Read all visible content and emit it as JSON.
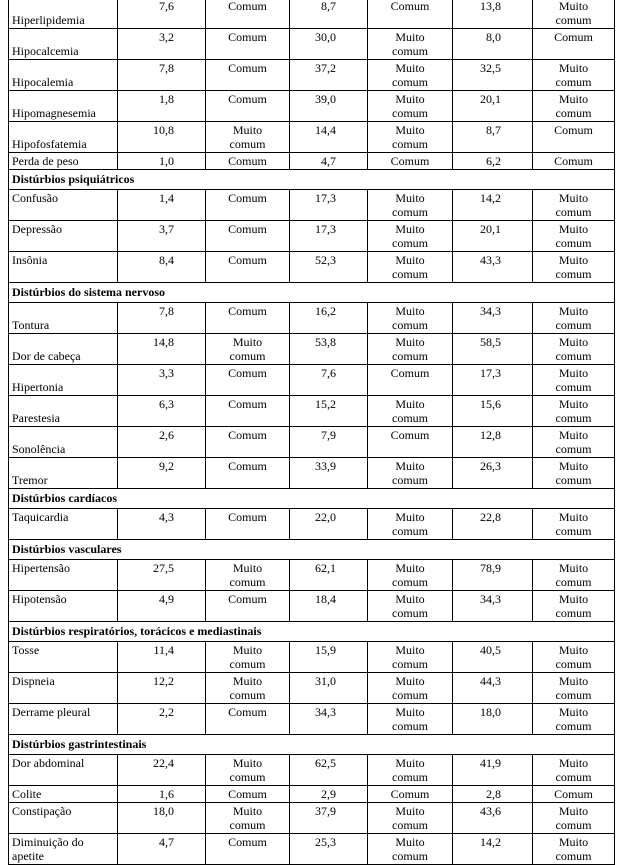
{
  "table": {
    "rows": [
      {
        "label": "Hiperlipidemia",
        "cells": [
          "7,6",
          "Comum",
          "8,7",
          "Comum",
          "13,8",
          "Muito comum"
        ]
      },
      {
        "label": "Hipocalcemia",
        "cells": [
          "3,2",
          "Comum",
          "30,0",
          "Muito comum",
          "8,0",
          "Comum"
        ]
      },
      {
        "label": "Hipocalemia",
        "cells": [
          "7,8",
          "Comum",
          "37,2",
          "Muito comum",
          "32,5",
          "Muito comum"
        ]
      },
      {
        "label": "Hipomagnesemia",
        "cells": [
          "1,8",
          "Comum",
          "39,0",
          "Muito comum",
          "20,1",
          "Muito comum"
        ]
      },
      {
        "label": "Hipofosfatemia",
        "cells": [
          "10,8",
          "Muito comum",
          "14,4",
          "Muito comum",
          "8,7",
          "Comum"
        ]
      },
      {
        "label": "Perda de peso",
        "cells": [
          "1,0",
          "Comum",
          "4,7",
          "Comum",
          "6,2",
          "Comum"
        ]
      },
      {
        "heading": "Distúrbios psiquiátricos"
      },
      {
        "label": "Confusão",
        "cells": [
          "1,4",
          "Comum",
          "17,3",
          "Muito comum",
          "14,2",
          "Muito comum"
        ]
      },
      {
        "label": "Depressão",
        "cells": [
          "3,7",
          "Comum",
          "17,3",
          "Muito comum",
          "20,1",
          "Muito comum"
        ]
      },
      {
        "label": "Insônia",
        "cells": [
          "8,4",
          "Comum",
          "52,3",
          "Muito comum",
          "43,3",
          "Muito comum"
        ]
      },
      {
        "heading": "Distúrbios do sistema nervoso"
      },
      {
        "label": "Tontura",
        "cells": [
          "7,8",
          "Comum",
          "16,2",
          "Muito comum",
          "34,3",
          "Muito comum"
        ]
      },
      {
        "label": "Dor de cabeça",
        "cells": [
          "14,8",
          "Muito comum",
          "53,8",
          "Muito comum",
          "58,5",
          "Muito comum"
        ]
      },
      {
        "label": "Hipertonia",
        "cells": [
          "3,3",
          "Comum",
          "7,6",
          "Comum",
          "17,3",
          "Muito comum"
        ]
      },
      {
        "label": "Parestesia",
        "cells": [
          "6,3",
          "Comum",
          "15,2",
          "Muito comum",
          "15,6",
          "Muito comum"
        ]
      },
      {
        "label": "Sonolência",
        "cells": [
          "2,6",
          "Comum",
          "7,9",
          "Comum",
          "12,8",
          "Muito comum"
        ]
      },
      {
        "label": "Tremor",
        "cells": [
          "9,2",
          "Comum",
          "33,9",
          "Muito comum",
          "26,3",
          "Muito comum"
        ]
      },
      {
        "heading": "Distúrbios cardíacos"
      },
      {
        "label": "Taquicardia",
        "cells": [
          "4,3",
          "Comum",
          "22,0",
          "Muito comum",
          "22,8",
          "Muito comum"
        ]
      },
      {
        "heading": "Distúrbios vasculares"
      },
      {
        "label": "Hipertensão",
        "cells": [
          "27,5",
          "Muito comum",
          "62,1",
          "Muito comum",
          "78,9",
          "Muito comum"
        ]
      },
      {
        "label": "Hipotensão",
        "cells": [
          "4,9",
          "Comum",
          "18,4",
          "Muito comum",
          "34,3",
          "Muito comum"
        ]
      },
      {
        "heading": "Distúrbios respiratórios, torácicos e mediastinais"
      },
      {
        "label": "Tosse",
        "cells": [
          "11,4",
          "Muito comum",
          "15,9",
          "Muito comum",
          "40,5",
          "Muito comum"
        ]
      },
      {
        "label": "Dispneia",
        "cells": [
          "12,2",
          "Muito comum",
          "31,0",
          "Muito comum",
          "44,3",
          "Muito comum"
        ]
      },
      {
        "label": "Derrame pleural",
        "cells": [
          "2,2",
          "Comum",
          "34,3",
          "Muito comum",
          "18,0",
          "Muito comum"
        ]
      },
      {
        "heading": "Distúrbios gastrintestinais"
      },
      {
        "label": "Dor abdominal",
        "cells": [
          "22,4",
          "Muito comum",
          "62,5",
          "Muito comum",
          "41,9",
          "Muito comum"
        ]
      },
      {
        "label": "Colite",
        "cells": [
          "1,6",
          "Comum",
          "2,9",
          "Comum",
          "2,8",
          "Comum"
        ]
      },
      {
        "label": "Constipação",
        "cells": [
          "18,0",
          "Muito comum",
          "37,9",
          "Muito comum",
          "43,6",
          "Muito comum"
        ]
      },
      {
        "label": "Diminuição do apetite",
        "cells": [
          "4,7",
          "Comum",
          "25,3",
          "Muito comum",
          "14,2",
          "Muito comum"
        ]
      }
    ]
  }
}
